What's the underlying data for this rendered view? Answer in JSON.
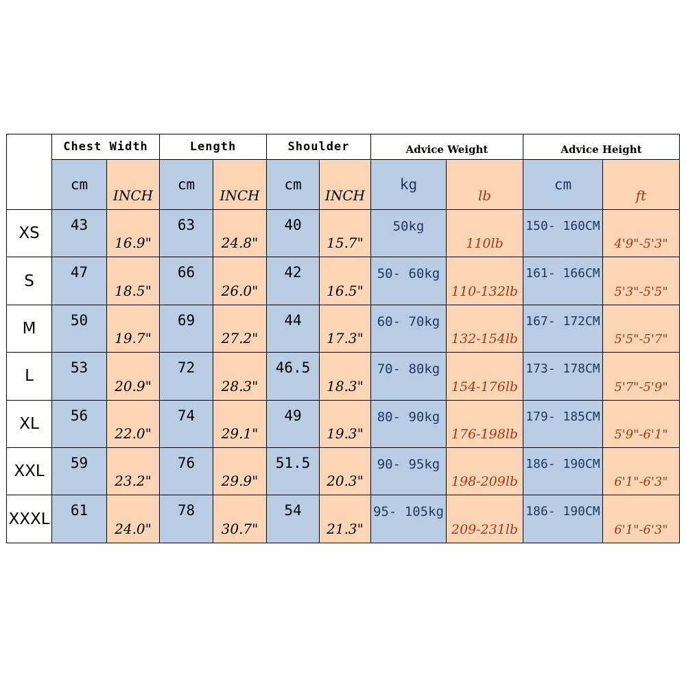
{
  "chart_data": {
    "type": "table",
    "column_groups": [
      {
        "label": "Chest Width",
        "units": [
          "cm",
          "INCH"
        ]
      },
      {
        "label": "Length",
        "units": [
          "cm",
          "INCH"
        ]
      },
      {
        "label": "Shoulder",
        "units": [
          "cm",
          "INCH"
        ]
      },
      {
        "label": "Advice Weight",
        "units": [
          "kg",
          "lb"
        ]
      },
      {
        "label": "Advice Height",
        "units": [
          "cm",
          "ft"
        ]
      }
    ],
    "rows": [
      {
        "size": "XS",
        "values": [
          "43",
          "16.9\"",
          "63",
          "24.8\"",
          "40",
          "15.7\"",
          "50kg",
          "110lb",
          "150- 160CM",
          "4'9\"-5'3\""
        ]
      },
      {
        "size": "S",
        "values": [
          "47",
          "18.5\"",
          "66",
          "26.0\"",
          "42",
          "16.5\"",
          "50- 60kg",
          "110-132lb",
          "161- 166CM",
          "5'3\"-5'5\""
        ]
      },
      {
        "size": "M",
        "values": [
          "50",
          "19.7\"",
          "69",
          "27.2\"",
          "44",
          "17.3\"",
          "60- 70kg",
          "132-154lb",
          "167- 172CM",
          "5'5\"-5'7\""
        ]
      },
      {
        "size": "L",
        "values": [
          "53",
          "20.9\"",
          "72",
          "28.3\"",
          "46.5",
          "18.3\"",
          "70- 80kg",
          "154-176lb",
          "173- 178CM",
          "5'7\"-5'9\""
        ]
      },
      {
        "size": "XL",
        "values": [
          "56",
          "22.0\"",
          "74",
          "29.1\"",
          "49",
          "19.3\"",
          "80- 90kg",
          "176-198lb",
          "179- 185CM",
          "5'9\"-6'1\""
        ]
      },
      {
        "size": "XXL",
        "values": [
          "59",
          "23.2\"",
          "76",
          "29.9\"",
          "51.5",
          "20.3\"",
          "90- 95kg",
          "198-209lb",
          "186- 190CM",
          "6'1\"-6'3\""
        ]
      },
      {
        "size": "XXXL",
        "values": [
          "61",
          "24.0\"",
          "78",
          "30.7\"",
          "54",
          "21.3\"",
          "95- 105kg",
          "209-231lb",
          "186- 190CM",
          "6'1\"-6'3\""
        ]
      }
    ]
  },
  "colors": {
    "cell_blue": "#b8cce4",
    "cell_peach": "#fbd5b5",
    "text_navy": "#1f3864",
    "text_rust": "#a33b0f",
    "border": "#000000"
  }
}
